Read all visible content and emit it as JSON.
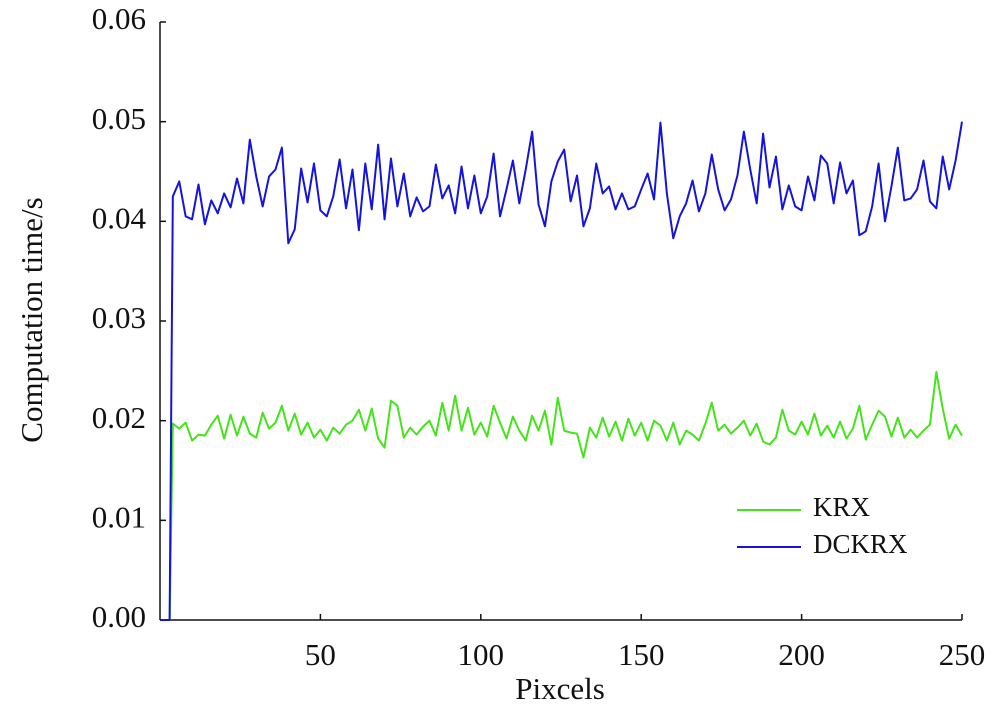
{
  "chart_data": {
    "type": "line",
    "xlabel": "Pixcels",
    "ylabel": "Computation time/s",
    "x": [
      0,
      3,
      4,
      6,
      8,
      10,
      12,
      14,
      16,
      18,
      20,
      22,
      24,
      26,
      28,
      30,
      32,
      34,
      36,
      38,
      40,
      42,
      44,
      46,
      48,
      50,
      52,
      54,
      56,
      58,
      60,
      62,
      64,
      66,
      68,
      70,
      72,
      74,
      76,
      78,
      80,
      82,
      84,
      86,
      88,
      90,
      92,
      94,
      96,
      98,
      100,
      102,
      104,
      106,
      108,
      110,
      112,
      114,
      116,
      118,
      120,
      122,
      124,
      126,
      128,
      130,
      132,
      134,
      136,
      138,
      140,
      142,
      144,
      146,
      148,
      150,
      152,
      154,
      156,
      158,
      160,
      162,
      164,
      166,
      168,
      170,
      172,
      174,
      176,
      178,
      180,
      182,
      184,
      186,
      188,
      190,
      192,
      194,
      196,
      198,
      200,
      202,
      204,
      206,
      208,
      210,
      212,
      214,
      216,
      218,
      220,
      222,
      224,
      226,
      228,
      230,
      232,
      234,
      236,
      238,
      240,
      242,
      244,
      246,
      248,
      250
    ],
    "series": [
      {
        "name": "KRX",
        "color": "#44e41a",
        "values": [
          0,
          0,
          0.0197,
          0.0192,
          0.0198,
          0.018,
          0.0186,
          0.0185,
          0.0196,
          0.0205,
          0.0182,
          0.0206,
          0.0185,
          0.0204,
          0.0187,
          0.0183,
          0.0208,
          0.0192,
          0.0198,
          0.0215,
          0.019,
          0.0207,
          0.0186,
          0.0198,
          0.0183,
          0.0191,
          0.018,
          0.0193,
          0.0187,
          0.0196,
          0.02,
          0.0211,
          0.019,
          0.0212,
          0.0182,
          0.0173,
          0.022,
          0.0215,
          0.0183,
          0.0193,
          0.0186,
          0.0194,
          0.02,
          0.0185,
          0.0218,
          0.019,
          0.0225,
          0.019,
          0.0213,
          0.0186,
          0.0198,
          0.0184,
          0.0215,
          0.0198,
          0.0182,
          0.0204,
          0.019,
          0.018,
          0.0205,
          0.019,
          0.021,
          0.0176,
          0.0223,
          0.019,
          0.0188,
          0.0187,
          0.0163,
          0.0193,
          0.0183,
          0.0203,
          0.0184,
          0.0199,
          0.018,
          0.0202,
          0.0185,
          0.0198,
          0.018,
          0.02,
          0.0195,
          0.018,
          0.0198,
          0.0176,
          0.019,
          0.0186,
          0.018,
          0.0197,
          0.0218,
          0.019,
          0.0196,
          0.0187,
          0.0193,
          0.02,
          0.0185,
          0.0197,
          0.0179,
          0.0176,
          0.0183,
          0.0211,
          0.019,
          0.0186,
          0.0199,
          0.0186,
          0.0207,
          0.0185,
          0.0195,
          0.0183,
          0.0199,
          0.0182,
          0.0192,
          0.0215,
          0.0181,
          0.0196,
          0.021,
          0.0204,
          0.0184,
          0.0203,
          0.0183,
          0.0191,
          0.0183,
          0.019,
          0.0196,
          0.0249,
          0.0212,
          0.0182,
          0.0196,
          0.0185
        ]
      },
      {
        "name": "DCKRX",
        "color": "#1414dc",
        "values": [
          0,
          0,
          0.0425,
          0.044,
          0.0405,
          0.0402,
          0.0437,
          0.0397,
          0.0421,
          0.0408,
          0.0428,
          0.0414,
          0.0443,
          0.0418,
          0.0482,
          0.0445,
          0.0415,
          0.0445,
          0.0452,
          0.0474,
          0.0378,
          0.0392,
          0.0453,
          0.0419,
          0.0458,
          0.0411,
          0.0405,
          0.0425,
          0.0462,
          0.0413,
          0.0452,
          0.0391,
          0.0458,
          0.0412,
          0.0477,
          0.0402,
          0.0463,
          0.0415,
          0.0448,
          0.0405,
          0.0424,
          0.041,
          0.0415,
          0.0457,
          0.0423,
          0.0436,
          0.0408,
          0.0455,
          0.0413,
          0.0446,
          0.0408,
          0.0425,
          0.0468,
          0.0405,
          0.0432,
          0.0461,
          0.0418,
          0.0452,
          0.049,
          0.0417,
          0.0395,
          0.044,
          0.046,
          0.0472,
          0.042,
          0.0446,
          0.0395,
          0.0413,
          0.0458,
          0.0428,
          0.0435,
          0.0412,
          0.0428,
          0.0412,
          0.0415,
          0.0432,
          0.0448,
          0.0422,
          0.0499,
          0.0428,
          0.0383,
          0.0405,
          0.0418,
          0.0441,
          0.041,
          0.0428,
          0.0467,
          0.0432,
          0.0411,
          0.0422,
          0.0446,
          0.049,
          0.0452,
          0.0418,
          0.0488,
          0.0434,
          0.0465,
          0.0412,
          0.0436,
          0.0415,
          0.0411,
          0.0445,
          0.0421,
          0.0466,
          0.0458,
          0.0418,
          0.0459,
          0.0428,
          0.0441,
          0.0386,
          0.039,
          0.0415,
          0.0458,
          0.04,
          0.0435,
          0.0474,
          0.0421,
          0.0423,
          0.0432,
          0.0461,
          0.042,
          0.0413,
          0.0465,
          0.0432,
          0.0461,
          0.05
        ]
      }
    ],
    "xlim": [
      0,
      250
    ],
    "xticks": [
      50,
      100,
      150,
      200,
      250
    ],
    "ylim": [
      0,
      0.06
    ],
    "yticks": [
      {
        "value": 0,
        "label": "0.00"
      },
      0.01,
      0.02,
      0.03,
      0.04,
      0.05,
      0.06
    ],
    "legend": "lower right",
    "grid": false
  }
}
